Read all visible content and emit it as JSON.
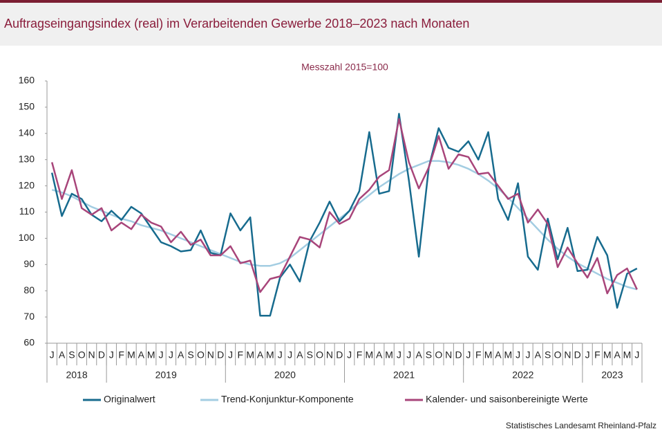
{
  "chart_data": {
    "type": "line",
    "title": "Auftragseingangsindex (real) im Verarbeitenden Gewerbe 2018–2023 nach Monaten",
    "subtitle": "Messzahl 2015=100",
    "source": "Statistisches Landesamt Rheinland-Pfalz",
    "categories": [
      "J",
      "A",
      "S",
      "O",
      "N",
      "D",
      "J",
      "F",
      "M",
      "A",
      "M",
      "J",
      "J",
      "A",
      "S",
      "O",
      "N",
      "D",
      "J",
      "F",
      "M",
      "A",
      "M",
      "J",
      "J",
      "A",
      "S",
      "O",
      "N",
      "D",
      "J",
      "F",
      "M",
      "A",
      "M",
      "J",
      "J",
      "A",
      "S",
      "O",
      "N",
      "D",
      "J",
      "F",
      "M",
      "A",
      "M",
      "J",
      "J",
      "A",
      "S",
      "O",
      "N",
      "D",
      "J",
      "F",
      "M",
      "A",
      "M",
      "J"
    ],
    "year_labels": [
      "2018",
      "2019",
      "2020",
      "2021",
      "2022",
      "2023"
    ],
    "series": [
      {
        "name": "Originalwert",
        "color": "#176b8e",
        "values": [
          125,
          108.5,
          117,
          115,
          109,
          106.5,
          110.5,
          107,
          112,
          109.5,
          104,
          98.5,
          97,
          95,
          95.5,
          103,
          94.5,
          93.5,
          109.5,
          103,
          108,
          70.5,
          70.5,
          85,
          90,
          83.5,
          99,
          106,
          114,
          106.5,
          110.5,
          118,
          140.5,
          117,
          118,
          147.5,
          122,
          93,
          127,
          142,
          134.5,
          133,
          137,
          130,
          140.5,
          115,
          107,
          121,
          93,
          88,
          107.5,
          92,
          104,
          87.5,
          88,
          100.5,
          93.5,
          73.5,
          86.5,
          88.5
        ]
      },
      {
        "name": "Trend-Konjunktur-Komponente",
        "color": "#a3cde2",
        "values": [
          118.5,
          117.5,
          116,
          114,
          112,
          110.5,
          109,
          107.5,
          106.5,
          105,
          104,
          103,
          101.5,
          100,
          98.5,
          97,
          95.5,
          94,
          92.5,
          91,
          90,
          89.5,
          89.5,
          90.5,
          92.5,
          95.5,
          98.5,
          101.5,
          104.5,
          107.5,
          110.5,
          113.5,
          116.5,
          119.5,
          122,
          124.5,
          126.5,
          128,
          129.5,
          129.5,
          129,
          128,
          126.5,
          124.5,
          122,
          119,
          115.5,
          111.5,
          107.5,
          103.5,
          99.5,
          96,
          93,
          90.5,
          88.5,
          86.5,
          84.5,
          83,
          81.5,
          80.5
        ]
      },
      {
        "name": "Kalender- und saisonbereinigte Werte",
        "color": "#a8457a",
        "values": [
          129,
          115,
          126,
          111.5,
          109,
          111.5,
          103,
          106,
          103.5,
          109,
          106,
          104.5,
          98.5,
          102.5,
          97.5,
          99.5,
          93.5,
          93.5,
          97,
          90.5,
          91.5,
          79.5,
          84.5,
          85.5,
          93,
          100.5,
          99.5,
          96.5,
          110,
          105.5,
          107.5,
          115,
          118.5,
          123.5,
          126,
          145.5,
          129,
          119,
          127,
          139,
          126.5,
          132,
          131,
          124.5,
          125,
          120,
          115,
          117,
          106,
          111,
          105.5,
          89,
          96.5,
          90.5,
          85,
          92.5,
          79,
          86,
          88.5,
          80.5
        ]
      }
    ],
    "ylim": [
      60,
      160
    ],
    "yticks": [
      60,
      70,
      80,
      90,
      100,
      110,
      120,
      130,
      140,
      150,
      160
    ],
    "grid": false
  }
}
